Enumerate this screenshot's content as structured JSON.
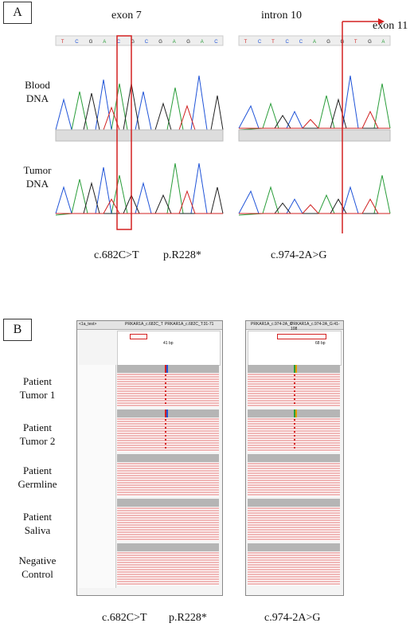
{
  "panelA": {
    "label": "A",
    "left_header": "exon 7",
    "right_header_intron": "intron 10",
    "right_header_exon": "exon 11",
    "row_labels": [
      [
        "Blood",
        "DNA"
      ],
      [
        "Tumor",
        "DNA"
      ]
    ],
    "caption_left_cdna": "c.682C>T",
    "caption_left_protein": "p.R228*",
    "caption_right": "c.974-2A>G",
    "left_seq_top": [
      "T",
      "C",
      "G",
      "A",
      "C",
      "G",
      "C",
      "G",
      "A",
      "G",
      "A",
      "C"
    ],
    "right_seq_top": [
      "T",
      "C",
      "T",
      "C",
      "C",
      "A",
      "G",
      "G",
      "T",
      "G",
      "A"
    ],
    "highlight_color": "#d42020"
  },
  "panelB": {
    "label": "B",
    "row_labels": [
      [
        "Patient",
        "Tumor 1"
      ],
      [
        "Patient",
        "Tumor 2"
      ],
      [
        "Patient",
        "Germline"
      ],
      [
        "Patient",
        "Saliva"
      ],
      [
        "Negative",
        "Control"
      ]
    ],
    "caption_left_cdna": "c.682C>T",
    "caption_left_protein": "p.R228*",
    "caption_right": "c.974-2A>G",
    "left_igv": {
      "tab1": "<1a_test>",
      "tab2": "PRKAR1A_c.682C_T",
      "tab3": "PRKAR1A_c.682C_T:31-71",
      "span": "41 bp"
    },
    "right_igv": {
      "tab1": "PRKAR1A_c.974-2A_G",
      "tab2": "PRKAR1A_c.974-2A_G:41-108",
      "span": "68 bp"
    },
    "read_color": "#f0b8b8",
    "coverage_color": "#b5b5b5"
  }
}
